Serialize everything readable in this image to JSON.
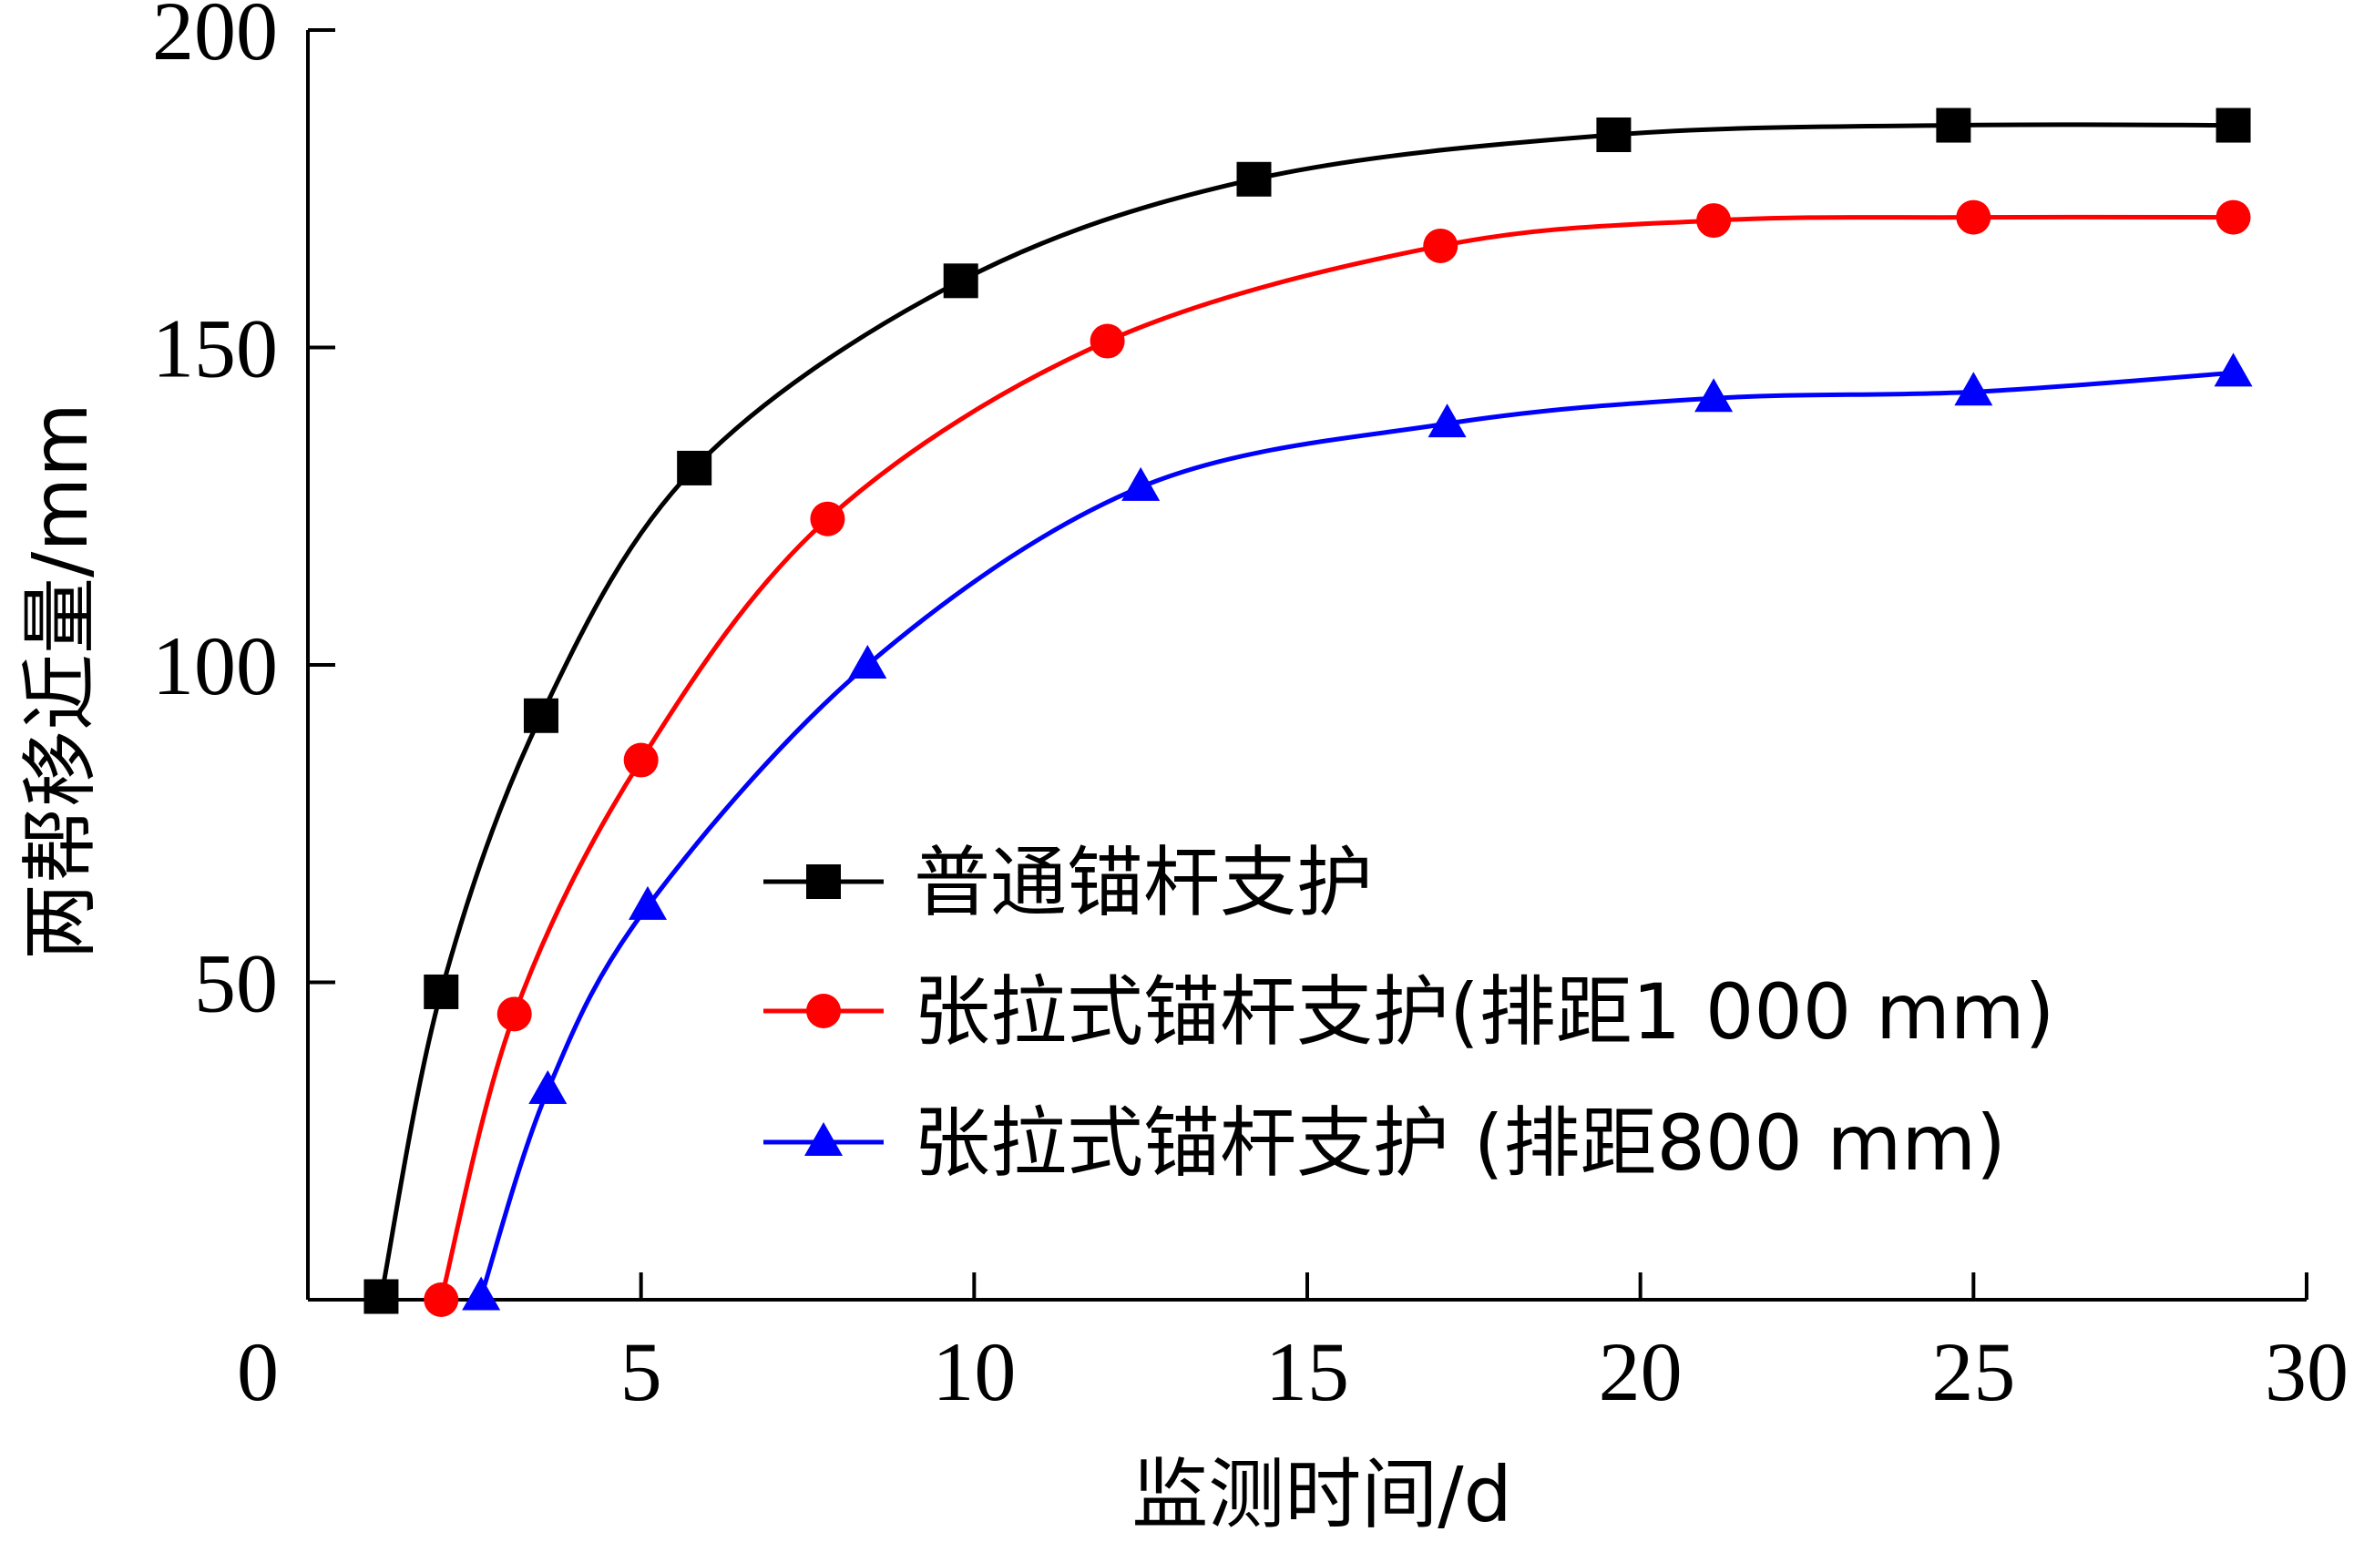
{
  "chart_data": {
    "type": "line",
    "xlabel": "监测时间/d",
    "ylabel": "两帮移近量/mm",
    "xlim": [
      0,
      30
    ],
    "ylim": [
      0,
      200
    ],
    "x_ticks": [
      0,
      5,
      10,
      15,
      20,
      25,
      30
    ],
    "y_ticks": [
      50,
      100,
      150,
      200
    ],
    "origin_label": "0",
    "grid": false,
    "legend_position": "center-right",
    "series": [
      {
        "name": "普通锚杆支护",
        "color": "#000000",
        "marker": "square",
        "x": [
          1.1,
          2.0,
          3.5,
          5.8,
          9.8,
          14.2,
          19.6,
          24.7,
          28.9
        ],
        "y": [
          0.5,
          48.5,
          92,
          131,
          160.5,
          176.5,
          183.5,
          185,
          185
        ]
      },
      {
        "name": "张拉式锚杆支护(排距1 000 mm)",
        "color": "#ff0000",
        "marker": "circle",
        "x": [
          2.0,
          3.1,
          5.0,
          7.8,
          12.0,
          17.0,
          21.1,
          25.0,
          28.9
        ],
        "y": [
          0,
          45,
          85,
          123,
          151,
          166,
          170,
          170.5,
          170.5
        ]
      },
      {
        "name": "张拉式锚杆支护 (排距800 mm)",
        "color": "#0000ff",
        "marker": "triangle",
        "x": [
          2.6,
          3.6,
          5.1,
          8.4,
          12.5,
          17.1,
          21.1,
          25.0,
          28.9
        ],
        "y": [
          0.5,
          33,
          62,
          100,
          128,
          138,
          142,
          143,
          146
        ]
      }
    ]
  }
}
